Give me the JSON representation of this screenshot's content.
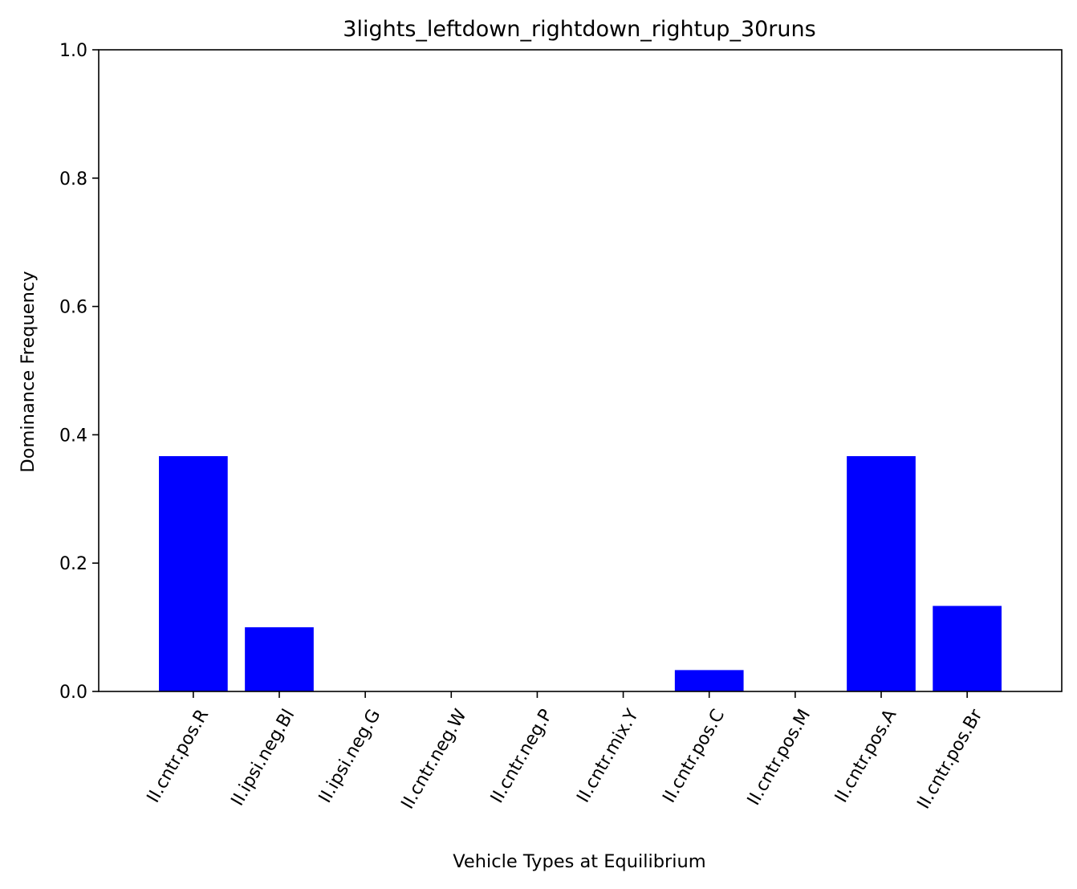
{
  "chart_data": {
    "type": "bar",
    "title": "3lights_leftdown_rightdown_rightup_30runs",
    "xlabel": "Vehicle Types at Equilibrium",
    "ylabel": "Dominance Frequency",
    "categories": [
      "II.cntr.pos.R",
      "II.ipsi.neg.Bl",
      "II.ipsi.neg.G",
      "II.cntr.neg.W",
      "II.cntr.neg.P",
      "II.cntr.mix.Y",
      "II.cntr.pos.C",
      "II.cntr.pos.M",
      "II.cntr.pos.A",
      "II.cntr.pos.Br"
    ],
    "values": [
      0.3667,
      0.1,
      0.0,
      0.0,
      0.0,
      0.0,
      0.0333,
      0.0,
      0.3667,
      0.1333
    ],
    "ylim": [
      0,
      1.0
    ],
    "yticks": [
      "0.0",
      "0.2",
      "0.4",
      "0.6",
      "0.8",
      "1.0"
    ],
    "bar_color": "#0000ff",
    "grid": false,
    "legend": "none"
  }
}
